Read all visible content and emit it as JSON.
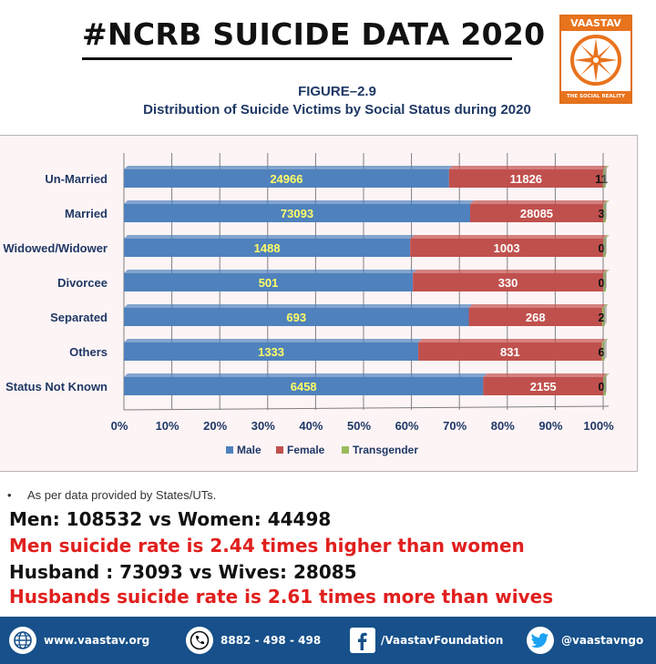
{
  "header": {
    "title": "#NCRB SUICIDE DATA 2020",
    "logo_top": "VAASTAV",
    "logo_bottom": "THE SOCIAL REALITY"
  },
  "figure": {
    "label": "FIGURE–2.9",
    "caption": "Distribution of Suicide Victims by Social Status during 2020"
  },
  "colors": {
    "male": "#4f81bd",
    "female": "#c0504d",
    "transgender": "#9bbb59",
    "male_label": "#ffff66",
    "female_label": "#ffffff"
  },
  "chart_data": {
    "type": "bar",
    "orientation": "horizontal",
    "stacked": "percent",
    "categories": [
      "Un-Married",
      "Married",
      "Widowed/Widower",
      "Divorcee",
      "Separated",
      "Others",
      "Status Not Known"
    ],
    "series": [
      {
        "name": "Male",
        "values": [
          24966,
          73093,
          1488,
          501,
          693,
          1333,
          6458
        ]
      },
      {
        "name": "Female",
        "values": [
          11826,
          28085,
          1003,
          330,
          268,
          831,
          2155
        ]
      },
      {
        "name": "Transgender",
        "values": [
          11,
          3,
          0,
          0,
          2,
          6,
          0
        ]
      }
    ],
    "x_ticks": [
      "0%",
      "10%",
      "20%",
      "30%",
      "40%",
      "50%",
      "60%",
      "70%",
      "80%",
      "90%",
      "100%"
    ],
    "xlim": [
      0,
      100
    ],
    "grid": true,
    "legend_position": "bottom"
  },
  "notes": {
    "bullet": "•",
    "source": "As per data provided by States/UTs."
  },
  "stats": [
    "Men: 108532 vs Women: 44498",
    "Men suicide rate is 2.44 times higher than women",
    "Husband : 73093 vs Wives: 28085",
    "Husbands suicide rate is 2.61 times more than wives"
  ],
  "footer": {
    "website": "www.vaastav.org",
    "phone": "8882 - 498 - 498",
    "facebook": "/VaastavFoundation",
    "twitter": "@vaastavngo",
    "icons": [
      "globe-icon",
      "phone-icon",
      "facebook-icon",
      "twitter-icon"
    ]
  }
}
